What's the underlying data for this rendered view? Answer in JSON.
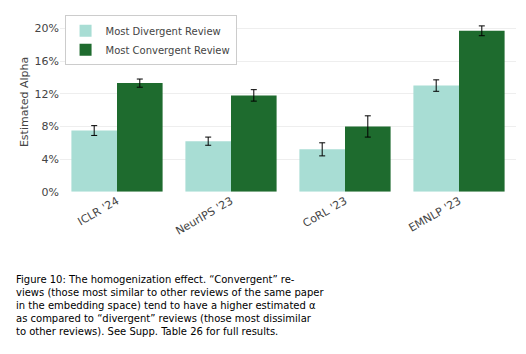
{
  "chart_data": {
    "type": "bar",
    "categories": [
      "ICLR '24",
      "NeurIPS '23",
      "CoRL '23",
      "EMNLP '23"
    ],
    "series": [
      {
        "name": "Most Divergent Review",
        "color": "#a8ddd4",
        "values": [
          0.075,
          0.062,
          0.052,
          0.13
        ],
        "errors": [
          0.006,
          0.005,
          0.008,
          0.007
        ]
      },
      {
        "name": "Most Convergent Review",
        "color": "#1e6b2e",
        "values": [
          0.133,
          0.118,
          0.08,
          0.197
        ],
        "errors": [
          0.005,
          0.007,
          0.013,
          0.006
        ]
      }
    ],
    "ylabel": "Estimated Alpha",
    "ylim": [
      0,
      0.22
    ],
    "yticks": [
      {
        "value": 0.0,
        "label": "0%"
      },
      {
        "value": 0.04,
        "label": "4%"
      },
      {
        "value": 0.08,
        "label": "8%"
      },
      {
        "value": 0.12,
        "label": "12%"
      },
      {
        "value": 0.16,
        "label": "16%"
      },
      {
        "value": 0.2,
        "label": "20%"
      }
    ],
    "grid": true,
    "legend": "upper left",
    "annotations": [
      "Figure 10: The homogenization effect. “Convergent” re-",
      "views (those most similar to other reviews of the same paper",
      "in the embedding space) tend to have a higher estimated α",
      "as compared to “divergent” reviews (those most dissimilar",
      "to other reviews). See Supp. Table 26 for full results."
    ]
  }
}
